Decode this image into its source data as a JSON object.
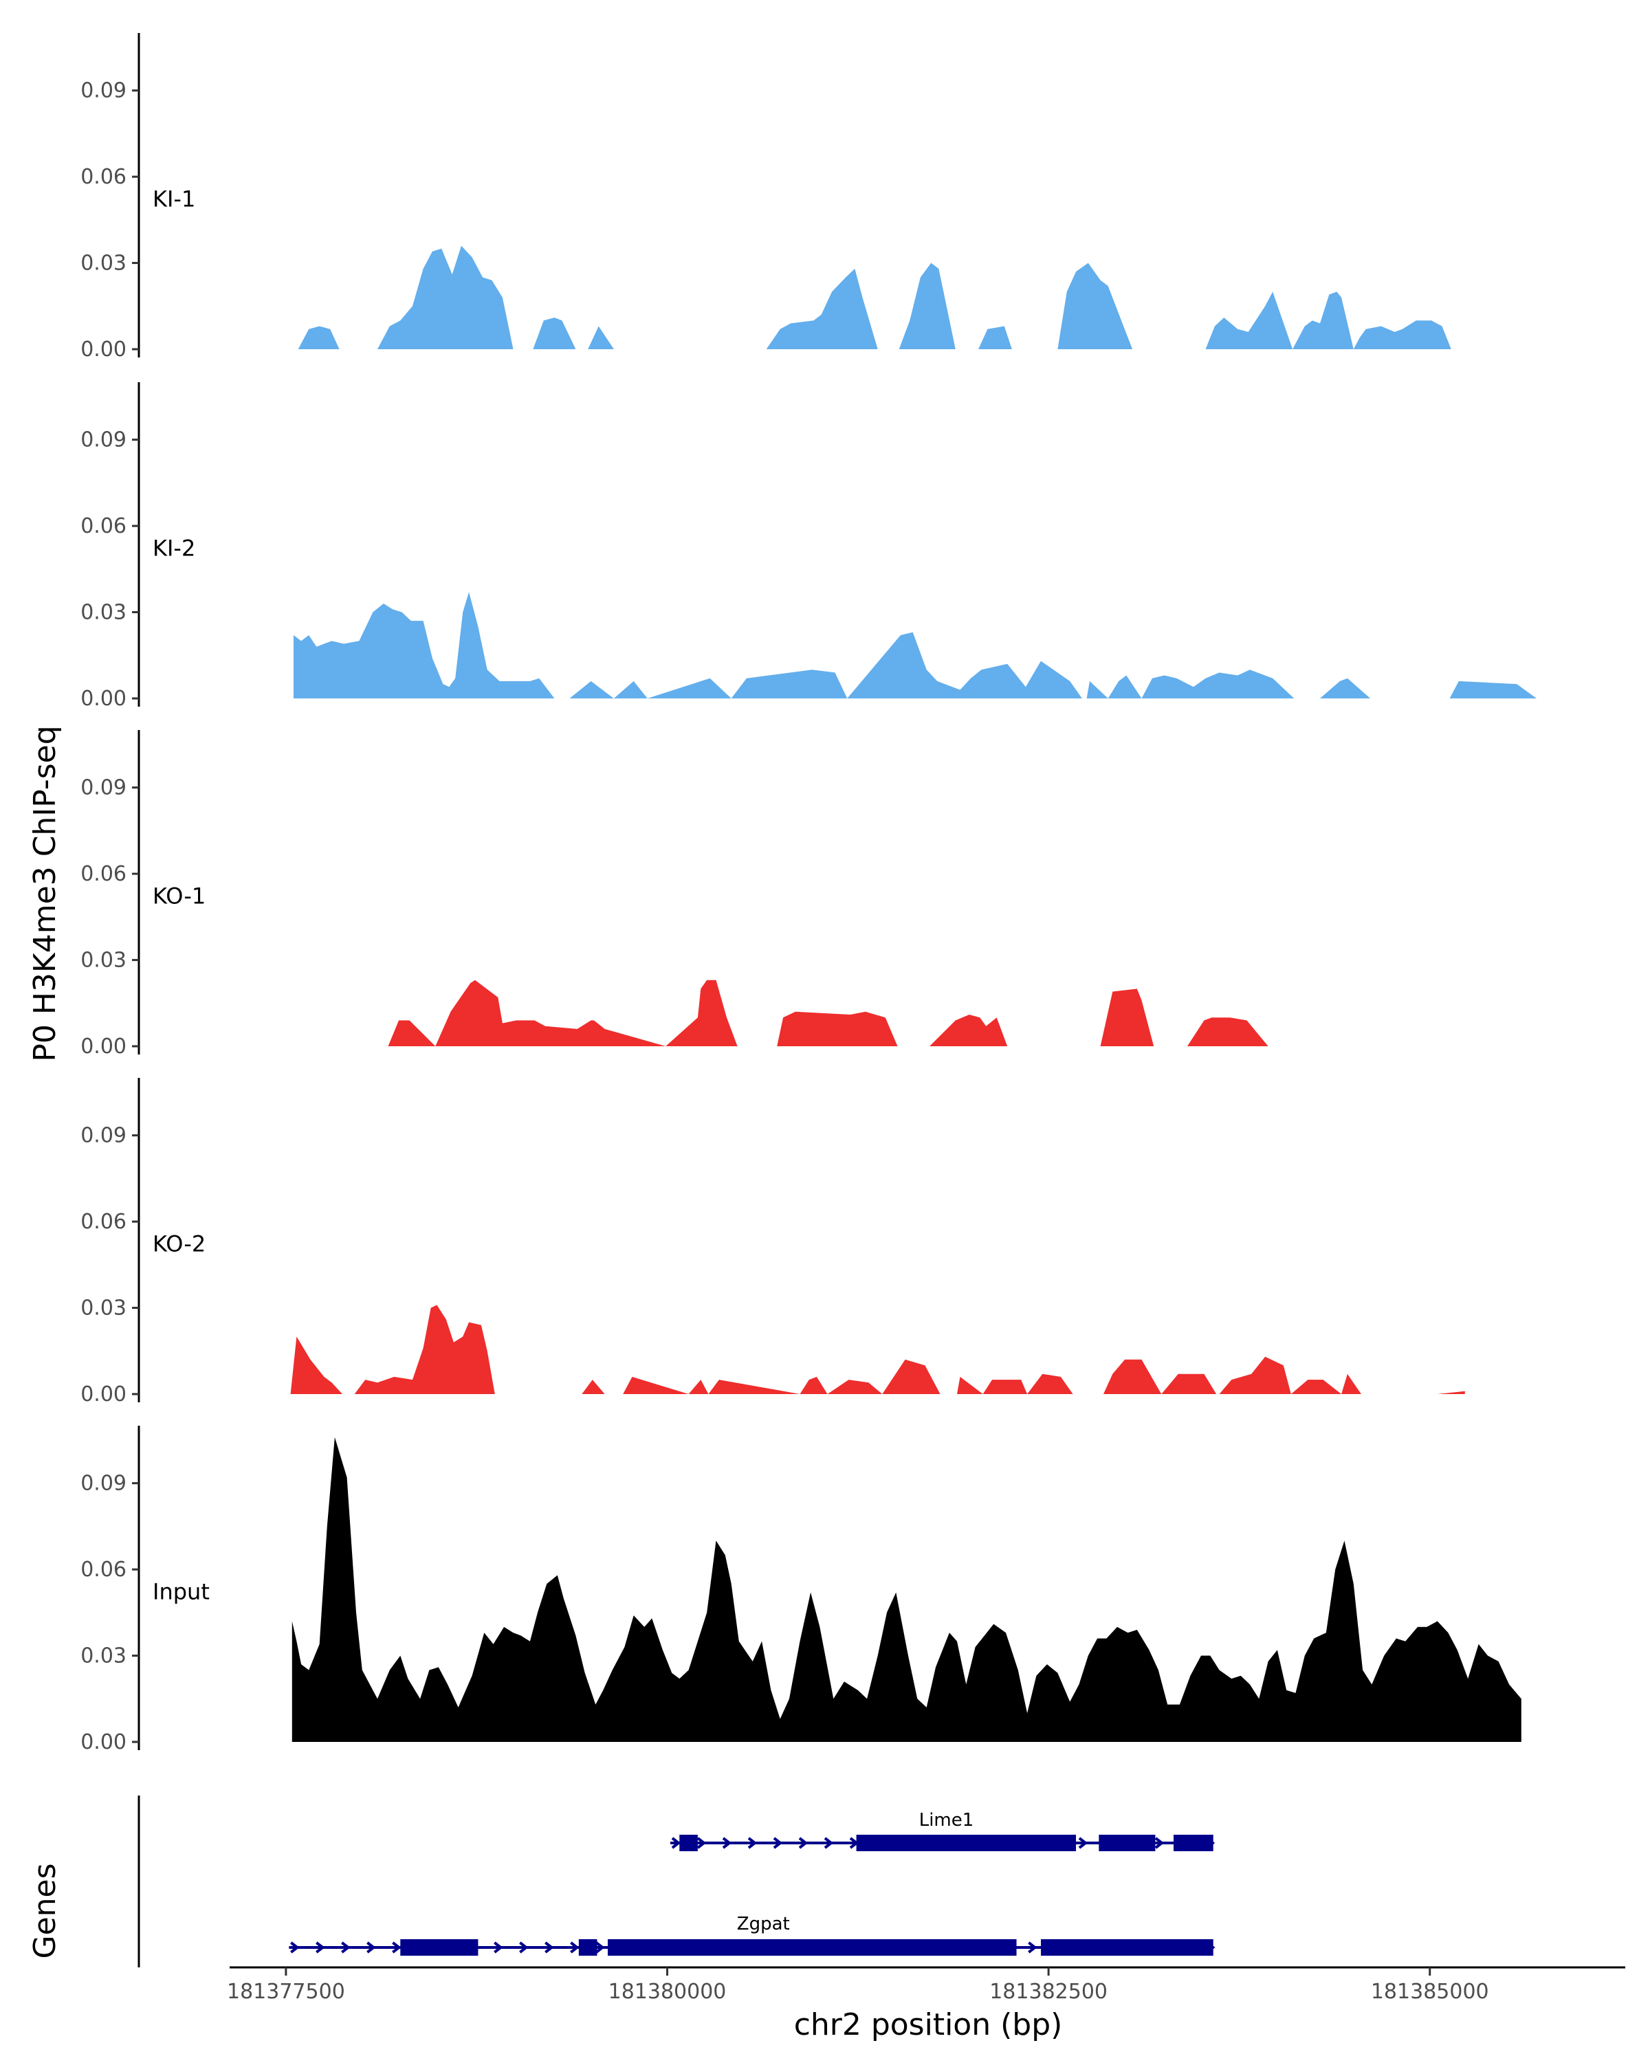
{
  "chart_data": {
    "type": "area",
    "title": "",
    "xlabel": "chr2 position (bp)",
    "ylabel": "P0 H3K4me3 ChIP-seq",
    "genes_ylabel": "Genes",
    "xlim": [
      181376800,
      181386600
    ],
    "ylim": [
      0,
      0.11
    ],
    "x_ticks": [
      181377500,
      181380000,
      181382500,
      181385000
    ],
    "x_tick_labels": [
      "181377500",
      "181380000",
      "181382500",
      "181385000"
    ],
    "y_ticks": [
      0,
      0.03,
      0.06,
      0.09
    ],
    "y_tick_labels": [
      "0.00",
      "0.03",
      "0.06",
      "0.09"
    ],
    "colors": {
      "KI": "#63aeec",
      "KO": "#ee2d2d",
      "Input": "#000000",
      "gene": "#00008b"
    },
    "series": [
      {
        "name": "KI-1",
        "color": "#63aeec",
        "x": [
          181377580,
          181377650,
          181377720,
          181377790,
          181377850,
          181377950,
          181378100,
          181378180,
          181378250,
          181378330,
          181378400,
          181378460,
          181378520,
          181378590,
          181378650,
          181378720,
          181378790,
          181378850,
          181378920,
          181378990,
          181379120,
          181379190,
          181379260,
          181379310,
          181379400,
          181379480,
          181379550,
          181379650,
          181380650,
          181380740,
          181380810,
          181380960,
          181381010,
          181381080,
          181381170,
          181381230,
          181381280,
          181381380,
          181381520,
          181381590,
          181381660,
          181381730,
          181381780,
          181381890,
          181382040,
          181382100,
          181382210,
          181382260,
          181382560,
          181382620,
          181382680,
          181382760,
          181382840,
          181382890,
          181383050,
          181383530,
          181383590,
          181383650,
          181383740,
          181383810,
          181383920,
          181383970,
          181384100,
          181384180,
          181384230,
          181384280,
          181384340,
          181384390,
          181384420,
          181384500,
          181384540,
          181384580,
          181384680,
          181384770,
          181384820,
          181384910,
          181385010,
          181385080,
          181385140,
          181385170,
          181385280,
          181385330,
          181385400
        ],
        "y": [
          0,
          0.007,
          0.008,
          0.007,
          0,
          0,
          0,
          0.008,
          0.01,
          0.015,
          0.028,
          0.034,
          0.035,
          0.026,
          0.036,
          0.032,
          0.025,
          0.024,
          0.018,
          0,
          0,
          0.01,
          0.011,
          0.01,
          0,
          0,
          0.008,
          0,
          0,
          0.007,
          0.009,
          0.01,
          0.012,
          0.02,
          0.025,
          0.028,
          0.018,
          0,
          0,
          0.01,
          0.025,
          0.03,
          0.028,
          0,
          0,
          0.007,
          0.008,
          0,
          0,
          0.02,
          0.027,
          0.03,
          0.024,
          0.022,
          0,
          0,
          0.008,
          0.011,
          0.007,
          0.006,
          0.015,
          0.02,
          0,
          0.008,
          0.01,
          0.009,
          0.019,
          0.02,
          0.018,
          0,
          0.004,
          0.007,
          0.008,
          0.006,
          0.007,
          0.01,
          0.01,
          0.008,
          0,
          0,
          0,
          0,
          0
        ]
      },
      {
        "name": "KI-2",
        "color": "#63aeec",
        "x": [
          181377550,
          181377600,
          181377650,
          181377700,
          181377800,
          181377880,
          181377980,
          181378070,
          181378140,
          181378200,
          181378260,
          181378320,
          181378400,
          181378460,
          181378530,
          181378570,
          181378610,
          181378660,
          181378700,
          181378760,
          181378820,
          181378900,
          181379020,
          181379100,
          181379160,
          181379260,
          181379360,
          181379500,
          181379650,
          181379780,
          181379870,
          181380280,
          181380420,
          181380520,
          181380950,
          181381100,
          181381180,
          181381530,
          181381610,
          181381700,
          181381770,
          181381920,
          181381990,
          181382060,
          181382230,
          181382350,
          181382450,
          181382640,
          181382720,
          181382750,
          181382770,
          181382810,
          181382890,
          181382960,
          181383010,
          181383110,
          181383180,
          181383260,
          181383340,
          181383450,
          181383530,
          181383620,
          181383740,
          181383820,
          181383970,
          181384110,
          181384280,
          181384410,
          181384460,
          181384610,
          181384720,
          181384880,
          181385050,
          181385130,
          181385190,
          181385570,
          181385700,
          181385790
        ],
        "y": [
          0.022,
          0.02,
          0.022,
          0.018,
          0.02,
          0.019,
          0.02,
          0.03,
          0.033,
          0.031,
          0.03,
          0.027,
          0.027,
          0.014,
          0.005,
          0.004,
          0.007,
          0.03,
          0.037,
          0.025,
          0.01,
          0.006,
          0.006,
          0.006,
          0.007,
          0,
          0,
          0.006,
          0,
          0.006,
          0,
          0.007,
          0,
          0.007,
          0.01,
          0.009,
          0,
          0.022,
          0.023,
          0.01,
          0.006,
          0.003,
          0.007,
          0.01,
          0.012,
          0.004,
          0.013,
          0.006,
          0,
          0,
          0.006,
          0.004,
          0,
          0.006,
          0.008,
          0,
          0.007,
          0.008,
          0.007,
          0.004,
          0.007,
          0.009,
          0.008,
          0.01,
          0.007,
          0,
          0,
          0.006,
          0.007,
          0,
          0,
          0,
          0,
          0,
          0.006,
          0.005,
          0,
          0
        ]
      },
      {
        "name": "KO-1",
        "color": "#ee2d2d",
        "x": [
          181378170,
          181378240,
          181378310,
          181378480,
          181378580,
          181378710,
          181378740,
          181378890,
          181378920,
          181379010,
          181379080,
          181379130,
          181379200,
          181379410,
          181379500,
          181379520,
          181379590,
          181379990,
          181380200,
          181380220,
          181380260,
          181380320,
          181380390,
          181380460,
          181380480,
          181380720,
          181380760,
          181380840,
          181381200,
          181381300,
          181381430,
          181381510,
          181381720,
          181381890,
          181381980,
          181382050,
          181382090,
          181382160,
          181382230,
          181382840,
          181382920,
          181383080,
          181383110,
          181383190,
          181383410,
          181383520,
          181383570,
          181383690,
          181383800,
          181383940,
          181384010
        ],
        "y": [
          0,
          0.009,
          0.009,
          0,
          0.012,
          0.022,
          0.023,
          0.017,
          0.008,
          0.009,
          0.009,
          0.009,
          0.007,
          0.006,
          0.009,
          0.009,
          0.006,
          0,
          0.01,
          0.02,
          0.023,
          0.023,
          0.01,
          0,
          0,
          0,
          0.01,
          0.012,
          0.011,
          0.012,
          0.01,
          0,
          0,
          0.009,
          0.011,
          0.01,
          0.007,
          0.01,
          0,
          0,
          0.019,
          0.02,
          0.016,
          0,
          0,
          0.009,
          0.01,
          0.01,
          0.009,
          0,
          0
        ]
      },
      {
        "name": "KO-2",
        "color": "#ee2d2d",
        "x": [
          181377530,
          181377570,
          181377660,
          181377750,
          181377800,
          181377870,
          181377950,
          181378020,
          181378100,
          181378210,
          181378330,
          181378400,
          181378450,
          181378490,
          181378550,
          181378600,
          181378660,
          181378700,
          181378780,
          181378820,
          181378870,
          181378940,
          181378990,
          181379100,
          181379270,
          181379440,
          181379510,
          181379590,
          181379710,
          181379770,
          181380140,
          181380220,
          181380270,
          181380340,
          181380870,
          181380930,
          181380980,
          181381050,
          181381190,
          181381320,
          181381410,
          181381560,
          181381690,
          181381790,
          181381900,
          181381920,
          181382070,
          181382130,
          181382320,
          181382360,
          181382460,
          181382580,
          181382660,
          181382860,
          181382920,
          181383000,
          181383110,
          181383240,
          181383350,
          181383420,
          181383520,
          181383600,
          181383620,
          181383700,
          181383830,
          181383920,
          181384040,
          181384090,
          181384200,
          181384300,
          181384420,
          181384460,
          181384550,
          181384700,
          181385000,
          181385050,
          181385230
        ],
        "y": [
          0,
          0.02,
          0.012,
          0.006,
          0.004,
          0,
          0,
          0.005,
          0.004,
          0.006,
          0.005,
          0.016,
          0.03,
          0.031,
          0.026,
          0.018,
          0.02,
          0.025,
          0.024,
          0.015,
          0,
          0,
          0,
          0,
          0,
          0,
          0.005,
          0,
          0,
          0.006,
          0,
          0.005,
          0,
          0.005,
          0,
          0.005,
          0.006,
          0,
          0.005,
          0.004,
          0,
          0.012,
          0.01,
          0,
          0,
          0.006,
          0,
          0.005,
          0.005,
          0,
          0.007,
          0.006,
          0,
          0,
          0.007,
          0.012,
          0.012,
          0,
          0.007,
          0.007,
          0.007,
          0,
          0,
          0.005,
          0.007,
          0.013,
          0.01,
          0,
          0.005,
          0.005,
          0,
          0.007,
          0,
          0,
          0,
          0,
          0.001
        ]
      },
      {
        "name": "Input",
        "color": "#000000",
        "x": [
          181377540,
          181377570,
          181377600,
          181377650,
          181377720,
          181377770,
          181377820,
          181377900,
          181377960,
          181378000,
          181378100,
          181378180,
          181378250,
          181378300,
          181378380,
          181378440,
          181378500,
          181378560,
          181378630,
          181378720,
          181378800,
          181378860,
          181378930,
          181378990,
          181379040,
          181379100,
          181379150,
          181379210,
          181379280,
          181379320,
          181379400,
          181379460,
          181379530,
          181379580,
          181379640,
          181379720,
          181379780,
          181379850,
          181379900,
          181379970,
          181380030,
          181380080,
          181380140,
          181380200,
          181380260,
          181380320,
          181380380,
          181380420,
          181380470,
          181380560,
          181380620,
          181380680,
          181380740,
          181380800,
          181380870,
          181380940,
          181381000,
          181381090,
          181381160,
          181381250,
          181381310,
          181381380,
          181381440,
          181381500,
          181381580,
          181381640,
          181381700,
          181381760,
          181381850,
          181381900,
          181381960,
          181382020,
          181382080,
          181382140,
          181382220,
          181382300,
          181382360,
          181382420,
          181382490,
          181382560,
          181382640,
          181382700,
          181382760,
          181382820,
          181382880,
          181382950,
          181383020,
          181383080,
          181383160,
          181383220,
          181383280,
          181383360,
          181383430,
          181383500,
          181383560,
          181383620,
          181383700,
          181383760,
          181383820,
          181383880,
          181383940,
          181384000,
          181384060,
          181384120,
          181384180,
          181384240,
          181384320,
          181384380,
          181384440,
          181384500,
          181384560,
          181384620,
          181384700,
          181384780,
          181384840,
          181384920,
          181384980,
          181385050,
          181385120,
          181385180,
          181385250,
          181385320,
          181385380,
          181385450,
          181385520,
          181385600
        ],
        "y": [
          0.042,
          0.035,
          0.027,
          0.025,
          0.034,
          0.075,
          0.106,
          0.092,
          0.045,
          0.025,
          0.015,
          0.025,
          0.03,
          0.022,
          0.015,
          0.025,
          0.026,
          0.02,
          0.012,
          0.023,
          0.038,
          0.034,
          0.04,
          0.038,
          0.037,
          0.035,
          0.045,
          0.055,
          0.058,
          0.05,
          0.037,
          0.024,
          0.013,
          0.018,
          0.025,
          0.033,
          0.044,
          0.04,
          0.043,
          0.032,
          0.024,
          0.022,
          0.025,
          0.035,
          0.045,
          0.07,
          0.065,
          0.055,
          0.035,
          0.028,
          0.035,
          0.018,
          0.008,
          0.015,
          0.035,
          0.052,
          0.04,
          0.015,
          0.021,
          0.018,
          0.015,
          0.03,
          0.045,
          0.052,
          0.03,
          0.015,
          0.012,
          0.026,
          0.038,
          0.035,
          0.02,
          0.033,
          0.037,
          0.041,
          0.038,
          0.025,
          0.01,
          0.023,
          0.027,
          0.024,
          0.014,
          0.02,
          0.03,
          0.036,
          0.036,
          0.04,
          0.038,
          0.039,
          0.032,
          0.025,
          0.013,
          0.013,
          0.023,
          0.03,
          0.03,
          0.025,
          0.022,
          0.023,
          0.02,
          0.015,
          0.028,
          0.032,
          0.018,
          0.017,
          0.03,
          0.036,
          0.038,
          0.06,
          0.07,
          0.055,
          0.025,
          0.02,
          0.03,
          0.036,
          0.035,
          0.04,
          0.04,
          0.042,
          0.038,
          0.032,
          0.022,
          0.034,
          0.03,
          0.028,
          0.02,
          0.015
        ]
      }
    ],
    "genes": [
      {
        "name": "Lime1",
        "start": 181380020,
        "end": 181383580,
        "strand": "+",
        "exons": [
          [
            181380080,
            181380200
          ],
          [
            181381240,
            181382680
          ],
          [
            181382830,
            181383200
          ],
          [
            181383320,
            181383580
          ]
        ]
      },
      {
        "name": "Zgpat",
        "start": 181377520,
        "end": 181383580,
        "strand": "+",
        "exons": [
          [
            181378250,
            181378760
          ],
          [
            181379420,
            181379540
          ],
          [
            181379610,
            181382290
          ],
          [
            181382450,
            181383580
          ]
        ]
      }
    ]
  }
}
